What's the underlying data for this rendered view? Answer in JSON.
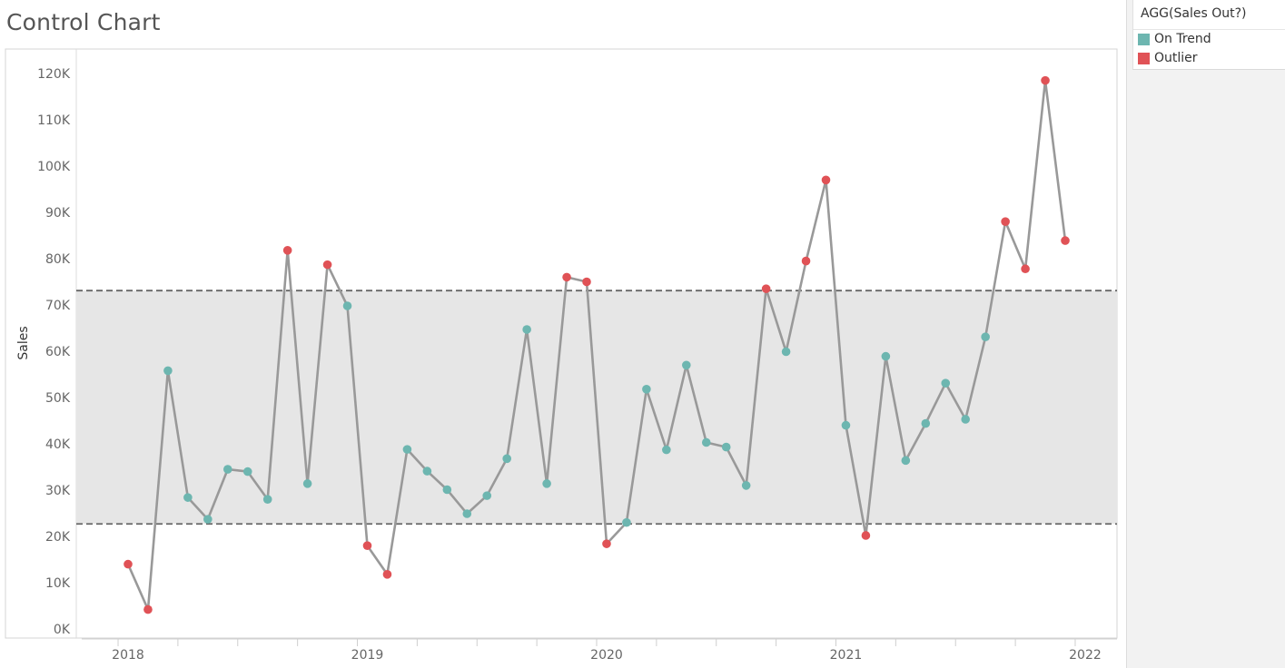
{
  "title": "Control Chart",
  "legend": {
    "title": "AGG(Sales Out?)",
    "items": [
      {
        "label": "On Trend",
        "color": "#6db6b0"
      },
      {
        "label": "Outlier",
        "color": "#e05256"
      }
    ]
  },
  "chart_data": {
    "type": "line",
    "ylabel": "Sales",
    "ylim": [
      -2000,
      124000
    ],
    "y_ticks": [
      {
        "value": 0,
        "label": "0K"
      },
      {
        "value": 10000,
        "label": "10K"
      },
      {
        "value": 20000,
        "label": "20K"
      },
      {
        "value": 30000,
        "label": "30K"
      },
      {
        "value": 40000,
        "label": "40K"
      },
      {
        "value": 50000,
        "label": "50K"
      },
      {
        "value": 60000,
        "label": "60K"
      },
      {
        "value": 70000,
        "label": "70K"
      },
      {
        "value": 80000,
        "label": "80K"
      },
      {
        "value": 90000,
        "label": "90K"
      },
      {
        "value": 100000,
        "label": "100K"
      },
      {
        "value": 110000,
        "label": "110K"
      },
      {
        "value": 120000,
        "label": "120K"
      }
    ],
    "x_ticks": [
      "2018",
      "2019",
      "2020",
      "2021",
      "2022"
    ],
    "x_range": [
      "2017-11",
      "2022-03"
    ],
    "band": {
      "lower": 22700,
      "upper": 73100
    },
    "line_color": "#999999",
    "band_color": "#e6e6e6",
    "series": [
      {
        "points": [
          {
            "x": "2018-01",
            "y": 14000,
            "status": "Outlier"
          },
          {
            "x": "2018-02",
            "y": 4200,
            "status": "Outlier"
          },
          {
            "x": "2018-03",
            "y": 55800,
            "status": "On Trend"
          },
          {
            "x": "2018-04",
            "y": 28400,
            "status": "On Trend"
          },
          {
            "x": "2018-05",
            "y": 23700,
            "status": "On Trend"
          },
          {
            "x": "2018-06",
            "y": 34500,
            "status": "On Trend"
          },
          {
            "x": "2018-07",
            "y": 34000,
            "status": "On Trend"
          },
          {
            "x": "2018-08",
            "y": 28000,
            "status": "On Trend"
          },
          {
            "x": "2018-09",
            "y": 81800,
            "status": "Outlier"
          },
          {
            "x": "2018-10",
            "y": 31400,
            "status": "On Trend"
          },
          {
            "x": "2018-11",
            "y": 78700,
            "status": "Outlier"
          },
          {
            "x": "2018-12",
            "y": 69800,
            "status": "On Trend"
          },
          {
            "x": "2019-01",
            "y": 18000,
            "status": "Outlier"
          },
          {
            "x": "2019-02",
            "y": 11800,
            "status": "Outlier"
          },
          {
            "x": "2019-03",
            "y": 38800,
            "status": "On Trend"
          },
          {
            "x": "2019-04",
            "y": 34100,
            "status": "On Trend"
          },
          {
            "x": "2019-05",
            "y": 30100,
            "status": "On Trend"
          },
          {
            "x": "2019-06",
            "y": 24900,
            "status": "On Trend"
          },
          {
            "x": "2019-07",
            "y": 28800,
            "status": "On Trend"
          },
          {
            "x": "2019-08",
            "y": 36800,
            "status": "On Trend"
          },
          {
            "x": "2019-09",
            "y": 64700,
            "status": "On Trend"
          },
          {
            "x": "2019-10",
            "y": 31400,
            "status": "On Trend"
          },
          {
            "x": "2019-11",
            "y": 76000,
            "status": "Outlier"
          },
          {
            "x": "2019-12",
            "y": 75000,
            "status": "Outlier"
          },
          {
            "x": "2020-01",
            "y": 18400,
            "status": "Outlier"
          },
          {
            "x": "2020-02",
            "y": 23000,
            "status": "On Trend"
          },
          {
            "x": "2020-03",
            "y": 51800,
            "status": "On Trend"
          },
          {
            "x": "2020-04",
            "y": 38700,
            "status": "On Trend"
          },
          {
            "x": "2020-05",
            "y": 57000,
            "status": "On Trend"
          },
          {
            "x": "2020-06",
            "y": 40300,
            "status": "On Trend"
          },
          {
            "x": "2020-07",
            "y": 39300,
            "status": "On Trend"
          },
          {
            "x": "2020-08",
            "y": 31000,
            "status": "On Trend"
          },
          {
            "x": "2020-09",
            "y": 73500,
            "status": "Outlier"
          },
          {
            "x": "2020-10",
            "y": 59900,
            "status": "On Trend"
          },
          {
            "x": "2020-11",
            "y": 79500,
            "status": "Outlier"
          },
          {
            "x": "2020-12",
            "y": 97000,
            "status": "Outlier"
          },
          {
            "x": "2021-01",
            "y": 44000,
            "status": "On Trend"
          },
          {
            "x": "2021-02",
            "y": 20200,
            "status": "Outlier"
          },
          {
            "x": "2021-03",
            "y": 58900,
            "status": "On Trend"
          },
          {
            "x": "2021-04",
            "y": 36400,
            "status": "On Trend"
          },
          {
            "x": "2021-05",
            "y": 44400,
            "status": "On Trend"
          },
          {
            "x": "2021-06",
            "y": 53100,
            "status": "On Trend"
          },
          {
            "x": "2021-07",
            "y": 45300,
            "status": "On Trend"
          },
          {
            "x": "2021-08",
            "y": 63100,
            "status": "On Trend"
          },
          {
            "x": "2021-09",
            "y": 88000,
            "status": "Outlier"
          },
          {
            "x": "2021-10",
            "y": 77800,
            "status": "Outlier"
          },
          {
            "x": "2021-11",
            "y": 118500,
            "status": "Outlier"
          },
          {
            "x": "2021-12",
            "y": 83900,
            "status": "Outlier"
          }
        ]
      }
    ]
  }
}
